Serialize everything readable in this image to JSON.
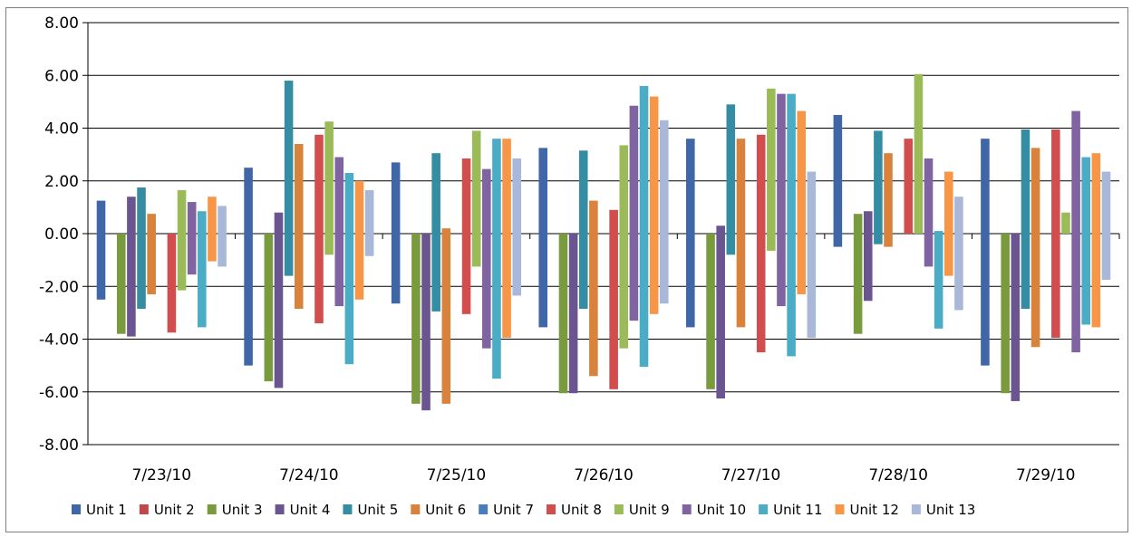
{
  "chart_data": {
    "type": "bar",
    "subtype": "floating-range",
    "categories": [
      "7/23/10",
      "7/24/10",
      "7/25/10",
      "7/26/10",
      "7/27/10",
      "7/28/10",
      "7/29/10"
    ],
    "ylim": [
      -8,
      8
    ],
    "yticks": [
      8,
      6,
      4,
      2,
      0,
      -2,
      -4,
      -6,
      -8
    ],
    "ytick_labels": [
      "8.00",
      "6.00",
      "4.00",
      "2.00",
      "0.00",
      "-2.00",
      "-4.00",
      "-6.00",
      "-8.00"
    ],
    "grid": true,
    "legend_position": "bottom",
    "series": [
      {
        "name": "Unit 1",
        "color": "#3f67a8",
        "high": [
          1.25,
          2.5,
          2.7,
          3.25,
          3.6,
          4.5,
          3.6
        ],
        "low": [
          -2.5,
          -5.0,
          -2.65,
          -3.55,
          -3.55,
          -0.5,
          -5.0
        ]
      },
      {
        "name": "Unit 2",
        "color": "#c0474a",
        "high": [
          0,
          0,
          0,
          0,
          0,
          0,
          0
        ],
        "low": [
          0,
          0,
          0,
          0,
          0,
          0,
          0
        ]
      },
      {
        "name": "Unit 3",
        "color": "#7a9a3e",
        "high": [
          0,
          0,
          0,
          0,
          0,
          0.75,
          0
        ],
        "low": [
          -3.8,
          -5.6,
          -6.45,
          -6.05,
          -5.9,
          -3.8,
          -6.05
        ]
      },
      {
        "name": "Unit 4",
        "color": "#6b5591",
        "high": [
          1.4,
          0.8,
          0,
          0,
          0.3,
          0.85,
          0
        ],
        "low": [
          -3.9,
          -5.85,
          -6.7,
          -6.05,
          -6.25,
          -2.55,
          -6.35
        ]
      },
      {
        "name": "Unit 5",
        "color": "#348da3",
        "high": [
          1.75,
          5.8,
          3.05,
          3.15,
          4.9,
          3.9,
          3.95
        ],
        "low": [
          -2.85,
          -1.6,
          -2.95,
          -2.85,
          -0.8,
          -0.4,
          -2.85
        ]
      },
      {
        "name": "Unit 6",
        "color": "#d9823b",
        "high": [
          0.75,
          3.4,
          0.2,
          1.25,
          3.6,
          3.05,
          3.25
        ],
        "low": [
          -2.3,
          -2.85,
          -6.45,
          -5.4,
          -3.55,
          -0.5,
          -4.3
        ]
      },
      {
        "name": "Unit 7",
        "color": "#4a7ebb",
        "high": [
          0,
          0,
          0,
          0,
          0,
          0,
          0
        ],
        "low": [
          0,
          0,
          0,
          0,
          0,
          0,
          0
        ]
      },
      {
        "name": "Unit 8",
        "color": "#d24e4e",
        "high": [
          0,
          3.75,
          2.85,
          0.9,
          3.75,
          3.6,
          3.95
        ],
        "low": [
          -3.75,
          -3.4,
          -3.05,
          -5.9,
          -4.5,
          0,
          -3.95
        ]
      },
      {
        "name": "Unit 9",
        "color": "#9bbb59",
        "high": [
          1.65,
          4.25,
          3.9,
          3.35,
          5.5,
          6.05,
          0.8
        ],
        "low": [
          -2.15,
          -0.8,
          -1.25,
          -4.35,
          -0.65,
          0,
          0
        ]
      },
      {
        "name": "Unit 10",
        "color": "#8064a2",
        "high": [
          1.2,
          2.9,
          2.45,
          4.85,
          5.3,
          2.85,
          4.65
        ],
        "low": [
          -1.55,
          -2.75,
          -4.35,
          -3.3,
          -2.75,
          -1.25,
          -4.5
        ]
      },
      {
        "name": "Unit 11",
        "color": "#4bacc6",
        "high": [
          0.85,
          2.3,
          3.6,
          5.6,
          5.3,
          0.1,
          2.9
        ],
        "low": [
          -3.55,
          -4.95,
          -5.5,
          -5.05,
          -4.65,
          -3.6,
          -3.45
        ]
      },
      {
        "name": "Unit 12",
        "color": "#f79646",
        "high": [
          1.4,
          2.0,
          3.6,
          5.2,
          4.65,
          2.35,
          3.05
        ],
        "low": [
          -1.05,
          -2.5,
          -3.95,
          -3.05,
          -2.3,
          -1.6,
          -3.55
        ]
      },
      {
        "name": "Unit 13",
        "color": "#a9b8d9",
        "high": [
          1.05,
          1.65,
          2.85,
          4.3,
          2.35,
          1.4,
          2.35
        ],
        "low": [
          -1.25,
          -0.85,
          -2.35,
          -2.65,
          -3.95,
          -2.9,
          -1.75
        ]
      }
    ]
  }
}
